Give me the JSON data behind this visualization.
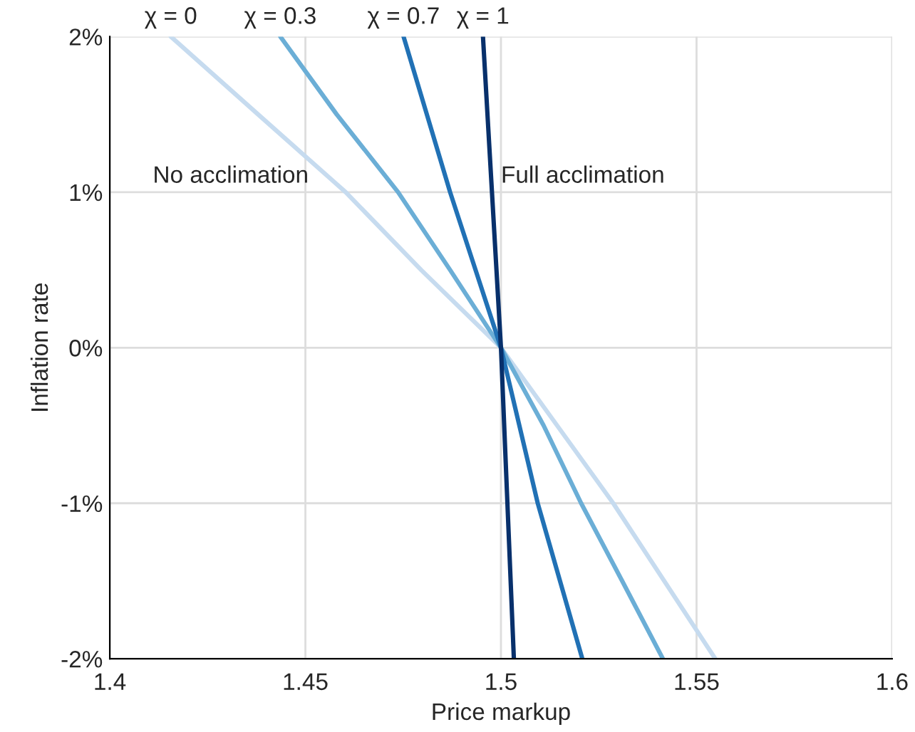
{
  "chart_data": {
    "type": "line",
    "xlabel": "Price markup",
    "ylabel": "Inflation rate",
    "xlim": [
      1.4,
      1.6
    ],
    "xticks": [
      1.4,
      1.45,
      1.5,
      1.55,
      1.6
    ],
    "ylim": [
      -2,
      2
    ],
    "yticks": [
      {
        "value": -2,
        "label": "-2%"
      },
      {
        "value": -1,
        "label": "-1%"
      },
      {
        "value": 0,
        "label": "0%"
      },
      {
        "value": 1,
        "label": "1%"
      },
      {
        "value": 2,
        "label": "2%"
      }
    ],
    "grid": true,
    "legend": false,
    "series": [
      {
        "name": "χ = 0",
        "color": "#c6dbef",
        "x": [
          1.4156,
          1.4379,
          1.4603,
          1.4796,
          1.5,
          1.5287,
          1.5548
        ],
        "values": [
          2,
          1.5,
          1,
          0.5,
          0,
          -1,
          -2
        ]
      },
      {
        "name": "χ = 0.3",
        "color": "#6baed6",
        "x": [
          1.4436,
          1.458,
          1.4737,
          1.487,
          1.5,
          1.5109,
          1.5205,
          1.531,
          1.5414
        ],
        "values": [
          2,
          1.5,
          1,
          0.5,
          0,
          -0.5,
          -1,
          -1.5,
          -2
        ]
      },
      {
        "name": "χ = 0.7",
        "color": "#2171b5",
        "x": [
          1.4751,
          1.487,
          1.5,
          1.5094,
          1.5208
        ],
        "values": [
          2,
          1,
          0,
          -1,
          -2
        ]
      },
      {
        "name": "χ = 1",
        "color": "#08306b",
        "x": [
          1.4954,
          1.5,
          1.5033
        ],
        "values": [
          2,
          0,
          -2
        ]
      }
    ],
    "annotations": [
      "No acclimation",
      "Full acclimation"
    ]
  }
}
